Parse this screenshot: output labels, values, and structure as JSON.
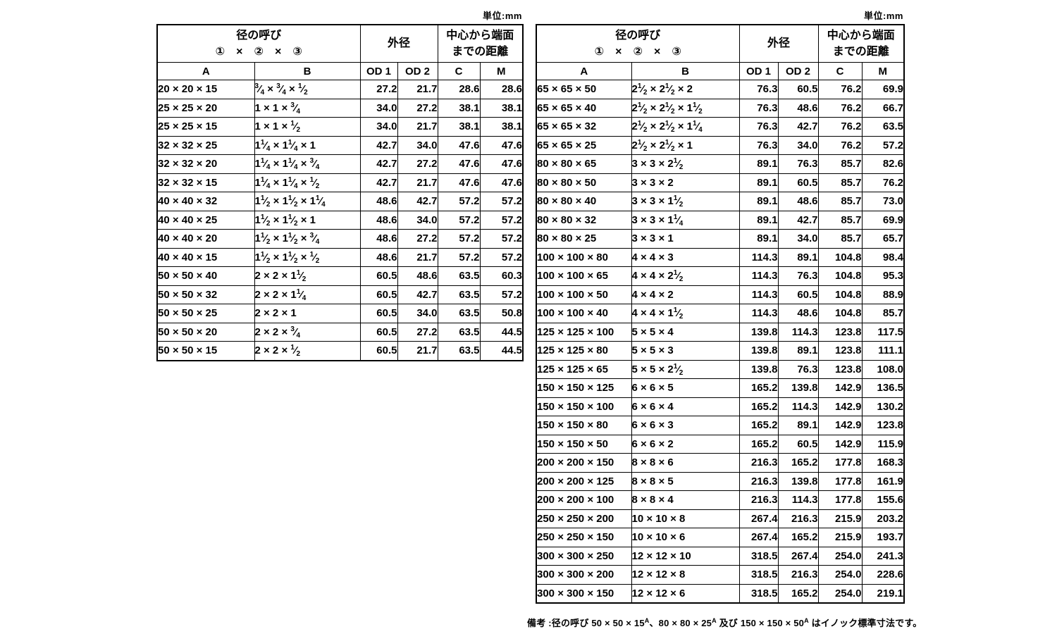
{
  "unit_label": "単位:mm",
  "header": {
    "nominal_title": "径の呼び",
    "nominal_subtitle": "①　×　②　×　③",
    "od_title": "外径",
    "distance_line1": "中心から端面",
    "distance_line2": "までの距離",
    "col_a": "A",
    "col_b": "B",
    "col_od1": "OD 1",
    "col_od2": "OD 2",
    "col_c": "C",
    "col_m": "M"
  },
  "tables": {
    "left": {
      "rows": [
        {
          "a": "20 × 20 × 15",
          "b": [
            "3/4",
            "3/4",
            "1/2"
          ],
          "od1": "27.2",
          "od2": "21.7",
          "c": "28.6",
          "m": "28.6"
        },
        {
          "a": "25 × 25 × 20",
          "b": [
            "1",
            "1",
            "3/4"
          ],
          "od1": "34.0",
          "od2": "27.2",
          "c": "38.1",
          "m": "38.1"
        },
        {
          "a": "25 × 25 × 15",
          "b": [
            "1",
            "1",
            "1/2"
          ],
          "od1": "34.0",
          "od2": "21.7",
          "c": "38.1",
          "m": "38.1"
        },
        {
          "a": "32 × 32 × 25",
          "b": [
            "1 1/4",
            "1 1/4",
            "1"
          ],
          "od1": "42.7",
          "od2": "34.0",
          "c": "47.6",
          "m": "47.6"
        },
        {
          "a": "32 × 32 × 20",
          "b": [
            "1 1/4",
            "1 1/4",
            "3/4"
          ],
          "od1": "42.7",
          "od2": "27.2",
          "c": "47.6",
          "m": "47.6"
        },
        {
          "a": "32 × 32 × 15",
          "b": [
            "1 1/4",
            "1 1/4",
            "1/2"
          ],
          "od1": "42.7",
          "od2": "21.7",
          "c": "47.6",
          "m": "47.6"
        },
        {
          "a": "40 × 40 × 32",
          "b": [
            "1 1/2",
            "1 1/2",
            "1 1/4"
          ],
          "od1": "48.6",
          "od2": "42.7",
          "c": "57.2",
          "m": "57.2"
        },
        {
          "a": "40 × 40 × 25",
          "b": [
            "1 1/2",
            "1 1/2",
            "1"
          ],
          "od1": "48.6",
          "od2": "34.0",
          "c": "57.2",
          "m": "57.2"
        },
        {
          "a": "40 × 40 × 20",
          "b": [
            "1 1/2",
            "1 1/2",
            "3/4"
          ],
          "od1": "48.6",
          "od2": "27.2",
          "c": "57.2",
          "m": "57.2"
        },
        {
          "a": "40 × 40 × 15",
          "b": [
            "1 1/2",
            "1 1/2",
            "1/2"
          ],
          "od1": "48.6",
          "od2": "21.7",
          "c": "57.2",
          "m": "57.2"
        },
        {
          "a": "50 × 50 × 40",
          "b": [
            "2",
            "2",
            "1 1/2"
          ],
          "od1": "60.5",
          "od2": "48.6",
          "c": "63.5",
          "m": "60.3"
        },
        {
          "a": "50 × 50 × 32",
          "b": [
            "2",
            "2",
            "1 1/4"
          ],
          "od1": "60.5",
          "od2": "42.7",
          "c": "63.5",
          "m": "57.2"
        },
        {
          "a": "50 × 50 × 25",
          "b": [
            "2",
            "2",
            "1"
          ],
          "od1": "60.5",
          "od2": "34.0",
          "c": "63.5",
          "m": "50.8"
        },
        {
          "a": "50 × 50 × 20",
          "b": [
            "2",
            "2",
            "3/4"
          ],
          "od1": "60.5",
          "od2": "27.2",
          "c": "63.5",
          "m": "44.5"
        },
        {
          "a": "50 × 50 × 15",
          "b": [
            "2",
            "2",
            "1/2"
          ],
          "od1": "60.5",
          "od2": "21.7",
          "c": "63.5",
          "m": "44.5"
        }
      ]
    },
    "right": {
      "rows": [
        {
          "a": "65 × 65 × 50",
          "b": [
            "2 1/2",
            "2 1/2",
            "2"
          ],
          "od1": "76.3",
          "od2": "60.5",
          "c": "76.2",
          "m": "69.9"
        },
        {
          "a": "65 × 65 × 40",
          "b": [
            "2 1/2",
            "2 1/2",
            "1 1/2"
          ],
          "od1": "76.3",
          "od2": "48.6",
          "c": "76.2",
          "m": "66.7"
        },
        {
          "a": "65 × 65 × 32",
          "b": [
            "2 1/2",
            "2 1/2",
            "1 1/4"
          ],
          "od1": "76.3",
          "od2": "42.7",
          "c": "76.2",
          "m": "63.5"
        },
        {
          "a": "65 × 65 × 25",
          "b": [
            "2 1/2",
            "2 1/2",
            "1"
          ],
          "od1": "76.3",
          "od2": "34.0",
          "c": "76.2",
          "m": "57.2"
        },
        {
          "a": "80 × 80 × 65",
          "b": [
            "3",
            "3",
            "2 1/2"
          ],
          "od1": "89.1",
          "od2": "76.3",
          "c": "85.7",
          "m": "82.6"
        },
        {
          "a": "80 × 80 × 50",
          "b": [
            "3",
            "3",
            "2"
          ],
          "od1": "89.1",
          "od2": "60.5",
          "c": "85.7",
          "m": "76.2"
        },
        {
          "a": "80 × 80 × 40",
          "b": [
            "3",
            "3",
            "1 1/2"
          ],
          "od1": "89.1",
          "od2": "48.6",
          "c": "85.7",
          "m": "73.0"
        },
        {
          "a": "80 × 80 × 32",
          "b": [
            "3",
            "3",
            "1 1/4"
          ],
          "od1": "89.1",
          "od2": "42.7",
          "c": "85.7",
          "m": "69.9"
        },
        {
          "a": "80 × 80 × 25",
          "b": [
            "3",
            "3",
            "1"
          ],
          "od1": "89.1",
          "od2": "34.0",
          "c": "85.7",
          "m": "65.7"
        },
        {
          "a": "100 × 100 × 80",
          "b": [
            "4",
            "4",
            "3"
          ],
          "od1": "114.3",
          "od2": "89.1",
          "c": "104.8",
          "m": "98.4"
        },
        {
          "a": "100 × 100 × 65",
          "b": [
            "4",
            "4",
            "2 1/2"
          ],
          "od1": "114.3",
          "od2": "76.3",
          "c": "104.8",
          "m": "95.3"
        },
        {
          "a": "100 × 100 × 50",
          "b": [
            "4",
            "4",
            "2"
          ],
          "od1": "114.3",
          "od2": "60.5",
          "c": "104.8",
          "m": "88.9"
        },
        {
          "a": "100 × 100 × 40",
          "b": [
            "4",
            "4",
            "1 1/2"
          ],
          "od1": "114.3",
          "od2": "48.6",
          "c": "104.8",
          "m": "85.7"
        },
        {
          "a": "125 × 125 × 100",
          "b": [
            "5",
            "5",
            "4"
          ],
          "od1": "139.8",
          "od2": "114.3",
          "c": "123.8",
          "m": "117.5"
        },
        {
          "a": "125 × 125 × 80",
          "b": [
            "5",
            "5",
            "3"
          ],
          "od1": "139.8",
          "od2": "89.1",
          "c": "123.8",
          "m": "111.1"
        },
        {
          "a": "125 × 125 × 65",
          "b": [
            "5",
            "5",
            "2 1/2"
          ],
          "od1": "139.8",
          "od2": "76.3",
          "c": "123.8",
          "m": "108.0"
        },
        {
          "a": "150 × 150 × 125",
          "b": [
            "6",
            "6",
            "5"
          ],
          "od1": "165.2",
          "od2": "139.8",
          "c": "142.9",
          "m": "136.5"
        },
        {
          "a": "150 × 150 × 100",
          "b": [
            "6",
            "6",
            "4"
          ],
          "od1": "165.2",
          "od2": "114.3",
          "c": "142.9",
          "m": "130.2"
        },
        {
          "a": "150 × 150 × 80",
          "b": [
            "6",
            "6",
            "3"
          ],
          "od1": "165.2",
          "od2": "89.1",
          "c": "142.9",
          "m": "123.8"
        },
        {
          "a": "150 × 150 × 50",
          "b": [
            "6",
            "6",
            "2"
          ],
          "od1": "165.2",
          "od2": "60.5",
          "c": "142.9",
          "m": "115.9"
        },
        {
          "a": "200 × 200 × 150",
          "b": [
            "8",
            "8",
            "6"
          ],
          "od1": "216.3",
          "od2": "165.2",
          "c": "177.8",
          "m": "168.3"
        },
        {
          "a": "200 × 200 × 125",
          "b": [
            "8",
            "8",
            "5"
          ],
          "od1": "216.3",
          "od2": "139.8",
          "c": "177.8",
          "m": "161.9"
        },
        {
          "a": "200 × 200 × 100",
          "b": [
            "8",
            "8",
            "4"
          ],
          "od1": "216.3",
          "od2": "114.3",
          "c": "177.8",
          "m": "155.6"
        },
        {
          "a": "250 × 250 × 200",
          "b": [
            "10",
            "10",
            "8"
          ],
          "od1": "267.4",
          "od2": "216.3",
          "c": "215.9",
          "m": "203.2"
        },
        {
          "a": "250 × 250 × 150",
          "b": [
            "10",
            "10",
            "6"
          ],
          "od1": "267.4",
          "od2": "165.2",
          "c": "215.9",
          "m": "193.7"
        },
        {
          "a": "300 × 300 × 250",
          "b": [
            "12",
            "12",
            "10"
          ],
          "od1": "318.5",
          "od2": "267.4",
          "c": "254.0",
          "m": "241.3"
        },
        {
          "a": "300 × 300 × 200",
          "b": [
            "12",
            "12",
            "8"
          ],
          "od1": "318.5",
          "od2": "216.3",
          "c": "254.0",
          "m": "228.6"
        },
        {
          "a": "300 × 300 × 150",
          "b": [
            "12",
            "12",
            "6"
          ],
          "od1": "318.5",
          "od2": "165.2",
          "c": "254.0",
          "m": "219.1"
        }
      ]
    }
  },
  "note": {
    "segments": [
      {
        "text": "備考 :径の呼び 50 × 50 × 15"
      },
      {
        "sup": "A"
      },
      {
        "text": "、80 × 80 × 25"
      },
      {
        "sup": "A"
      },
      {
        "text": " 及び 150 × 150 × 50"
      },
      {
        "sup": "A"
      },
      {
        "text": " はイノック標準寸法です。"
      }
    ]
  }
}
